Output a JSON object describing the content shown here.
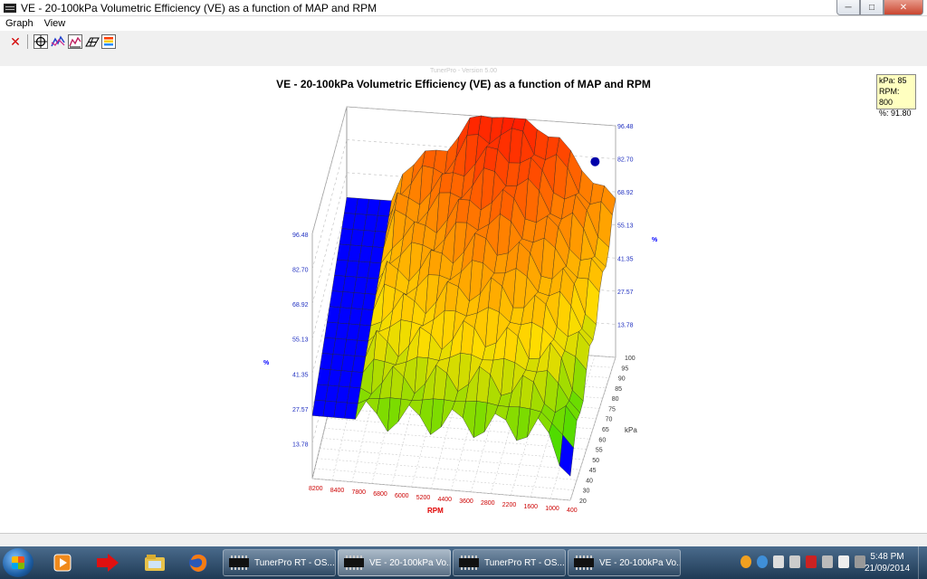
{
  "window": {
    "title": "VE - 20-100kPa Volumetric Efficiency (VE) as a function of MAP and RPM"
  },
  "menu": [
    "Graph",
    "View"
  ],
  "toolbar": {
    "icons": [
      "close-icon",
      "target-icon",
      "trace-icon",
      "chart-icon",
      "grid-icon",
      "colormap-icon"
    ]
  },
  "graph": {
    "watermark": "TunerPro - Version 5.00",
    "title": "VE - 20-100kPa Volumetric Efficiency (VE) as a function of MAP and RPM",
    "tooltip": {
      "kpa": "kPa: 85",
      "rpm": "RPM: 800",
      "pct": "%: 91.80"
    }
  },
  "chart_data": {
    "type": "surface3d",
    "title": "VE - 20-100kPa Volumetric Efficiency (VE) as a function of MAP and RPM",
    "xlabel": "RPM",
    "ylabel": "kPa",
    "zlabel": "%",
    "x_ticks": [
      "8200",
      "8400",
      "7800",
      "6800",
      "6000",
      "5200",
      "4400",
      "3600",
      "2800",
      "2200",
      "1600",
      "1000",
      "400"
    ],
    "y_ticks": [
      "20",
      "30",
      "40",
      "45",
      "50",
      "55",
      "60",
      "65",
      "70",
      "75",
      "80",
      "85",
      "90",
      "95",
      "100"
    ],
    "z_ticks": [
      "13.78",
      "27.57",
      "41.35",
      "55.13",
      "68.92",
      "82.70",
      "96.48"
    ],
    "zlim": [
      0,
      96.48
    ],
    "selected_point": {
      "kPa": 85,
      "RPM": 800,
      "VE": 91.8
    },
    "colors": {
      "low": "#0000ff",
      "mid": "#ffff00",
      "high": "#ff2000",
      "marker": "#0000aa",
      "x_axis_label": "#e00000",
      "z_axis_label": "#0000ff"
    }
  },
  "taskbar": {
    "items": [
      {
        "label": "TunerPro RT - OS...",
        "active": false
      },
      {
        "label": "VE - 20-100kPa Vo...",
        "active": true
      },
      {
        "label": "TunerPro RT - OS...",
        "active": false
      },
      {
        "label": "VE - 20-100kPa Vo...",
        "active": false
      }
    ],
    "time": "5:48 PM",
    "date": "21/09/2014"
  }
}
